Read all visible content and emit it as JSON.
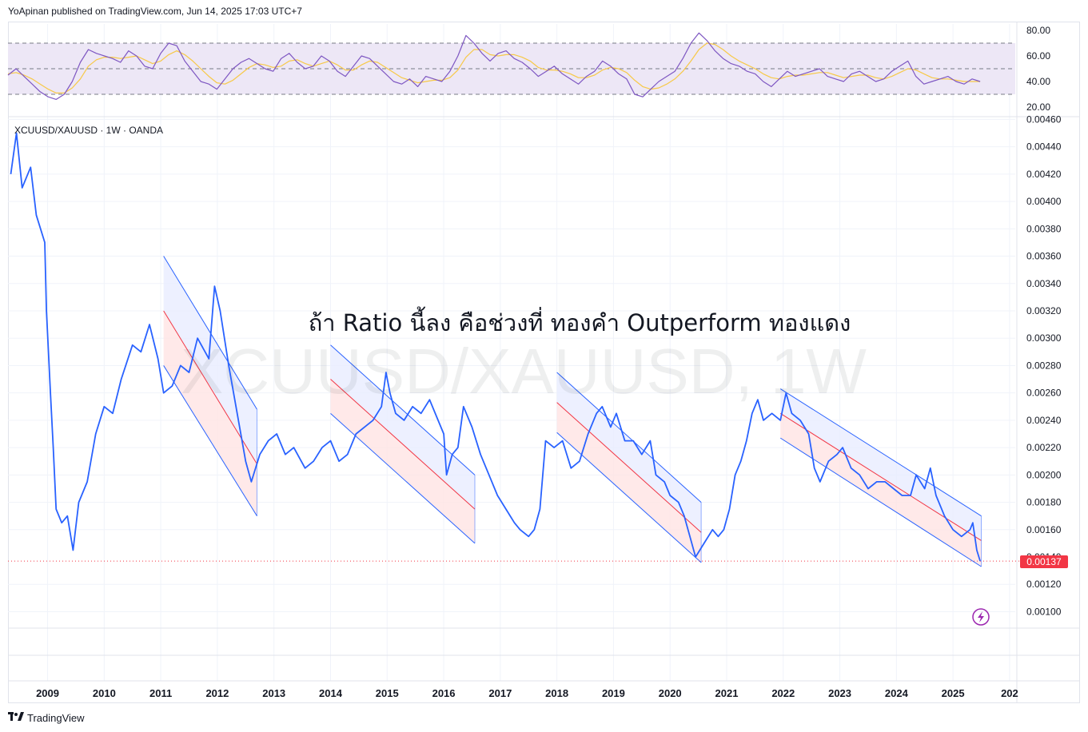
{
  "header": {
    "published": "YoApinan published on TradingView.com, Jun 14, 2025 17:03 UTC+7"
  },
  "footer": {
    "brand": "TradingView",
    "logo_icon": "tradingview-logo-icon"
  },
  "colors": {
    "price_line": "#2962ff",
    "rsi_line": "#7e57c2",
    "rsi_ma": "#f7c948",
    "rsi_band": "#ede7f6",
    "channel_line": "#2962ff",
    "channel_mid": "#f23645",
    "channel_upper_fill": "#e8ecff",
    "channel_lower_fill": "#ffe4e4",
    "price_badge": "#f23645",
    "grid": "#f0f3fa"
  },
  "chart_data": [
    {
      "id": "price",
      "type": "line",
      "symbol_label": "XCUUSD/XAUUSD · 1W · OANDA",
      "watermark": "XCUUSD/XAUUSD, 1W",
      "annotation": "ถ้า Ratio นี้ลง คือช่วงที่ ทองคำ Outperform ทองแดง",
      "last_price": "0.00137",
      "partial_label": "0.00140",
      "x_ticks": [
        "2009",
        "2010",
        "2011",
        "2012",
        "2013",
        "2014",
        "2015",
        "2016",
        "2017",
        "2018",
        "2019",
        "2020",
        "2021",
        "2022",
        "2023",
        "2024",
        "2025",
        "202"
      ],
      "y_ticks": [
        "0.00460",
        "0.00440",
        "0.00420",
        "0.00400",
        "0.00380",
        "0.00360",
        "0.00340",
        "0.00320",
        "0.00300",
        "0.00280",
        "0.00260",
        "0.00240",
        "0.00220",
        "0.00200",
        "0.00180",
        "0.00160",
        "0.00120",
        "0.00100"
      ],
      "ylim": [
        0.00088,
        0.00462
      ],
      "xlim": [
        2008.3,
        2026.1
      ],
      "series": [
        {
          "values": [
            [
              2008.35,
              0.0042
            ],
            [
              2008.45,
              0.0045
            ],
            [
              2008.55,
              0.0041
            ],
            [
              2008.7,
              0.00425
            ],
            [
              2008.8,
              0.0039
            ],
            [
              2008.95,
              0.0037
            ],
            [
              2008.98,
              0.0032
            ],
            [
              2009.05,
              0.0026
            ],
            [
              2009.1,
              0.0022
            ],
            [
              2009.15,
              0.00175
            ],
            [
              2009.25,
              0.00165
            ],
            [
              2009.35,
              0.0017
            ],
            [
              2009.45,
              0.00145
            ],
            [
              2009.55,
              0.0018
            ],
            [
              2009.7,
              0.00195
            ],
            [
              2009.85,
              0.0023
            ],
            [
              2010.0,
              0.0025
            ],
            [
              2010.15,
              0.00245
            ],
            [
              2010.3,
              0.0027
            ],
            [
              2010.5,
              0.00295
            ],
            [
              2010.65,
              0.0029
            ],
            [
              2010.8,
              0.0031
            ],
            [
              2010.95,
              0.00285
            ],
            [
              2011.05,
              0.0026
            ],
            [
              2011.2,
              0.00265
            ],
            [
              2011.35,
              0.0028
            ],
            [
              2011.5,
              0.00275
            ],
            [
              2011.65,
              0.003
            ],
            [
              2011.85,
              0.00285
            ],
            [
              2011.95,
              0.00338
            ],
            [
              2012.05,
              0.0032
            ],
            [
              2012.2,
              0.0028
            ],
            [
              2012.35,
              0.00245
            ],
            [
              2012.5,
              0.0021
            ],
            [
              2012.6,
              0.00195
            ],
            [
              2012.75,
              0.00215
            ],
            [
              2012.9,
              0.00225
            ],
            [
              2013.05,
              0.0023
            ],
            [
              2013.2,
              0.00215
            ],
            [
              2013.35,
              0.0022
            ],
            [
              2013.55,
              0.00205
            ],
            [
              2013.7,
              0.0021
            ],
            [
              2013.85,
              0.0022
            ],
            [
              2014.0,
              0.00225
            ],
            [
              2014.15,
              0.0021
            ],
            [
              2014.3,
              0.00215
            ],
            [
              2014.45,
              0.0023
            ],
            [
              2014.6,
              0.00235
            ],
            [
              2014.75,
              0.0024
            ],
            [
              2014.9,
              0.0025
            ],
            [
              2014.98,
              0.00275
            ],
            [
              2015.05,
              0.0026
            ],
            [
              2015.15,
              0.00245
            ],
            [
              2015.3,
              0.0024
            ],
            [
              2015.45,
              0.0025
            ],
            [
              2015.6,
              0.00245
            ],
            [
              2015.75,
              0.00255
            ],
            [
              2015.9,
              0.0024
            ],
            [
              2016.0,
              0.0023
            ],
            [
              2016.05,
              0.002
            ],
            [
              2016.15,
              0.00215
            ],
            [
              2016.25,
              0.0022
            ],
            [
              2016.35,
              0.0025
            ],
            [
              2016.5,
              0.00235
            ],
            [
              2016.65,
              0.00215
            ],
            [
              2016.8,
              0.002
            ],
            [
              2016.95,
              0.00185
            ],
            [
              2017.1,
              0.00175
            ],
            [
              2017.25,
              0.00165
            ],
            [
              2017.35,
              0.0016
            ],
            [
              2017.5,
              0.00155
            ],
            [
              2017.6,
              0.0016
            ],
            [
              2017.7,
              0.00175
            ],
            [
              2017.8,
              0.00225
            ],
            [
              2017.95,
              0.0022
            ],
            [
              2018.1,
              0.00225
            ],
            [
              2018.25,
              0.00205
            ],
            [
              2018.4,
              0.0021
            ],
            [
              2018.55,
              0.0023
            ],
            [
              2018.7,
              0.00245
            ],
            [
              2018.8,
              0.0025
            ],
            [
              2018.95,
              0.00235
            ],
            [
              2019.05,
              0.00245
            ],
            [
              2019.2,
              0.00225
            ],
            [
              2019.35,
              0.00225
            ],
            [
              2019.5,
              0.00215
            ],
            [
              2019.65,
              0.00225
            ],
            [
              2019.75,
              0.002
            ],
            [
              2019.9,
              0.00195
            ],
            [
              2020.0,
              0.00185
            ],
            [
              2020.15,
              0.0018
            ],
            [
              2020.25,
              0.0017
            ],
            [
              2020.35,
              0.00155
            ],
            [
              2020.45,
              0.0014
            ],
            [
              2020.6,
              0.0015
            ],
            [
              2020.75,
              0.0016
            ],
            [
              2020.85,
              0.00155
            ],
            [
              2020.95,
              0.0016
            ],
            [
              2021.05,
              0.00175
            ],
            [
              2021.15,
              0.002
            ],
            [
              2021.25,
              0.0021
            ],
            [
              2021.35,
              0.00225
            ],
            [
              2021.45,
              0.00245
            ],
            [
              2021.55,
              0.00255
            ],
            [
              2021.65,
              0.0024
            ],
            [
              2021.8,
              0.00245
            ],
            [
              2021.95,
              0.0024
            ],
            [
              2022.05,
              0.0026
            ],
            [
              2022.15,
              0.00245
            ],
            [
              2022.3,
              0.0024
            ],
            [
              2022.45,
              0.0023
            ],
            [
              2022.55,
              0.00205
            ],
            [
              2022.65,
              0.00195
            ],
            [
              2022.8,
              0.0021
            ],
            [
              2022.95,
              0.00215
            ],
            [
              2023.05,
              0.0022
            ],
            [
              2023.2,
              0.00205
            ],
            [
              2023.35,
              0.002
            ],
            [
              2023.5,
              0.0019
            ],
            [
              2023.65,
              0.00195
            ],
            [
              2023.8,
              0.00195
            ],
            [
              2023.95,
              0.0019
            ],
            [
              2024.1,
              0.00185
            ],
            [
              2024.25,
              0.00185
            ],
            [
              2024.35,
              0.002
            ],
            [
              2024.5,
              0.0019
            ],
            [
              2024.6,
              0.00205
            ],
            [
              2024.7,
              0.00185
            ],
            [
              2024.85,
              0.0017
            ],
            [
              2025.0,
              0.0016
            ],
            [
              2025.15,
              0.00155
            ],
            [
              2025.3,
              0.0016
            ],
            [
              2025.35,
              0.00165
            ],
            [
              2025.42,
              0.00145
            ],
            [
              2025.48,
              0.00137
            ]
          ]
        }
      ],
      "channels": [
        {
          "x": [
            2011.05,
            2012.7
          ],
          "upper": [
            0.0036,
            0.00248
          ],
          "mid": [
            0.0032,
            0.00208
          ],
          "lower": [
            0.0028,
            0.0017
          ]
        },
        {
          "x": [
            2014.0,
            2016.55
          ],
          "upper": [
            0.00295,
            0.002
          ],
          "mid": [
            0.0027,
            0.00175
          ],
          "lower": [
            0.00245,
            0.0015
          ]
        },
        {
          "x": [
            2018.0,
            2020.55
          ],
          "upper": [
            0.00275,
            0.0018
          ],
          "mid": [
            0.00253,
            0.00158
          ],
          "lower": [
            0.00231,
            0.00136
          ]
        },
        {
          "x": [
            2021.95,
            2025.5
          ],
          "upper": [
            0.00263,
            0.0017
          ],
          "mid": [
            0.00245,
            0.00152
          ],
          "lower": [
            0.00227,
            0.00133
          ]
        }
      ]
    },
    {
      "id": "rsi",
      "type": "line",
      "y_ticks": [
        "80.00",
        "60.00",
        "40.00",
        "20.00"
      ],
      "ylim": [
        15,
        85
      ],
      "band": [
        30,
        70
      ],
      "midline": 50,
      "series": [
        {
          "values": [
            45,
            50,
            44,
            38,
            32,
            28,
            26,
            30,
            40,
            55,
            65,
            62,
            60,
            58,
            55,
            64,
            60,
            52,
            50,
            62,
            70,
            68,
            56,
            48,
            40,
            38,
            34,
            42,
            50,
            55,
            58,
            54,
            50,
            48,
            58,
            62,
            55,
            50,
            52,
            60,
            56,
            48,
            44,
            52,
            60,
            58,
            52,
            46,
            40,
            38,
            42,
            36,
            44,
            42,
            40,
            48,
            60,
            76,
            70,
            62,
            56,
            62,
            64,
            58,
            55,
            50,
            44,
            48,
            52,
            46,
            42,
            38,
            44,
            48,
            56,
            52,
            46,
            42,
            30,
            28,
            34,
            40,
            44,
            48,
            58,
            70,
            78,
            72,
            64,
            58,
            54,
            52,
            48,
            46,
            40,
            36,
            42,
            48,
            44,
            46,
            48,
            50,
            44,
            42,
            40,
            46,
            48,
            44,
            40,
            42,
            48,
            52,
            56,
            44,
            38,
            40,
            42,
            44,
            40,
            38,
            42,
            40
          ]
        },
        {
          "values": [
            46,
            47,
            45,
            42,
            38,
            34,
            31,
            31,
            35,
            42,
            52,
            57,
            59,
            59,
            58,
            59,
            60,
            57,
            54,
            56,
            61,
            64,
            61,
            56,
            50,
            44,
            39,
            38,
            41,
            46,
            51,
            54,
            53,
            51,
            52,
            56,
            57,
            54,
            52,
            54,
            56,
            53,
            49,
            49,
            53,
            56,
            55,
            51,
            47,
            43,
            41,
            39,
            40,
            41,
            41,
            43,
            49,
            59,
            65,
            65,
            61,
            60,
            61,
            61,
            59,
            56,
            51,
            49,
            49,
            48,
            46,
            43,
            43,
            45,
            49,
            51,
            50,
            47,
            41,
            36,
            34,
            35,
            38,
            42,
            48,
            56,
            65,
            70,
            69,
            65,
            60,
            56,
            53,
            50,
            46,
            43,
            42,
            44,
            45,
            45,
            46,
            47,
            47,
            45,
            43,
            44,
            45,
            45,
            43,
            42,
            44,
            47,
            50,
            49,
            46,
            43,
            42,
            42,
            41,
            40,
            40,
            40
          ]
        }
      ]
    }
  ]
}
